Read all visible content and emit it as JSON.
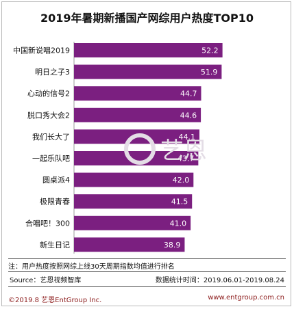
{
  "chart_data": {
    "type": "bar",
    "orientation": "horizontal",
    "title": "2019年暑期新播国产网综用户热度TOP10",
    "categories": [
      "中国新说唱2019",
      "明日之子3",
      "心动的信号2",
      "脱口秀大会2",
      "我们长大了",
      "一起乐队吧",
      "圆桌派4",
      "极限青春",
      "合唱吧！300",
      "新生日记"
    ],
    "values": [
      52.2,
      51.9,
      44.7,
      44.6,
      44.1,
      43.7,
      42.0,
      41.5,
      41.0,
      38.9
    ],
    "value_labels": [
      "52.2",
      "51.9",
      "44.7",
      "44.6",
      "44.1",
      "43.7",
      "42.0",
      "41.5",
      "41.0",
      "38.9"
    ],
    "bar_color": "#7b1f80",
    "xlim": [
      0,
      60
    ],
    "grid": false,
    "legend": "none"
  },
  "note": "注：用户热度按照网综上线30天周期指数均值进行排名",
  "source": "Source：艺恩视频智库",
  "period": "数据统计时间：2019.06.01-2019.08.24",
  "copyright": "©2019.8 艺恩EntGroup Inc.",
  "website": "www.entgroup.com.cn",
  "watermark_text": "艺恩"
}
